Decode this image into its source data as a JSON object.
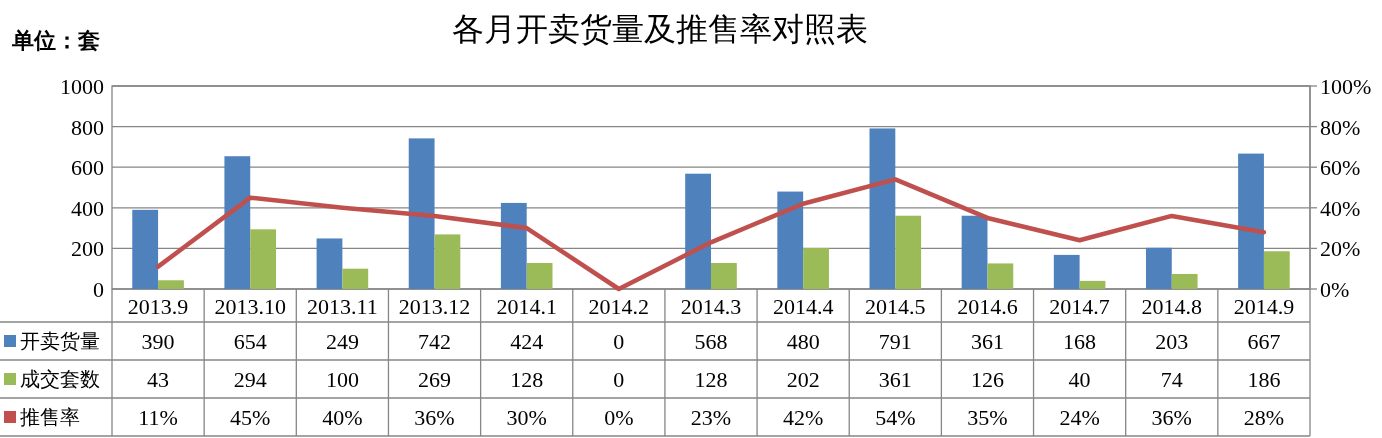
{
  "chart_data": {
    "type": "bar",
    "title": "各月开卖货量及推售率对照表",
    "ylabel": "单位：套",
    "categories": [
      "2013.9",
      "2013.10",
      "2013.11",
      "2013.12",
      "2014.1",
      "2014.2",
      "2014.3",
      "2014.4",
      "2014.5",
      "2014.6",
      "2014.7",
      "2014.8",
      "2014.9"
    ],
    "series": [
      {
        "name": "开卖货量",
        "color": "#4f81bd",
        "values": [
          390,
          654,
          249,
          742,
          424,
          0,
          568,
          480,
          791,
          361,
          168,
          203,
          667
        ],
        "value_labels": [
          "390",
          "654",
          "249",
          "742",
          "424",
          "0",
          "568",
          "480",
          "791",
          "361",
          "168",
          "203",
          "667"
        ]
      },
      {
        "name": "成交套数",
        "color": "#9bbb59",
        "values": [
          43,
          294,
          100,
          269,
          128,
          0,
          128,
          202,
          361,
          126,
          40,
          74,
          186
        ],
        "value_labels": [
          "43",
          "294",
          "100",
          "269",
          "128",
          "0",
          "128",
          "202",
          "361",
          "126",
          "40",
          "74",
          "186"
        ]
      },
      {
        "name": "推售率",
        "type": "line",
        "axis": "y2",
        "color": "#c0504d",
        "values": [
          11,
          45,
          40,
          36,
          30,
          0,
          23,
          42,
          54,
          35,
          24,
          36,
          28
        ],
        "value_labels": [
          "11%",
          "45%",
          "40%",
          "36%",
          "30%",
          "0%",
          "23%",
          "42%",
          "54%",
          "35%",
          "24%",
          "36%",
          "28%"
        ]
      }
    ],
    "ylim": [
      0,
      1000
    ],
    "yticks": [
      0,
      200,
      400,
      600,
      800,
      1000
    ],
    "y2lim": [
      0,
      100
    ],
    "y2ticks": [
      {
        "value": 0,
        "label": "0%"
      },
      {
        "value": 20,
        "label": "20%"
      },
      {
        "value": 40,
        "label": "40%"
      },
      {
        "value": 60,
        "label": "60%"
      },
      {
        "value": 80,
        "label": "80%"
      },
      {
        "value": 100,
        "label": "100%"
      }
    ],
    "grid": "y",
    "legend": "bottom"
  }
}
